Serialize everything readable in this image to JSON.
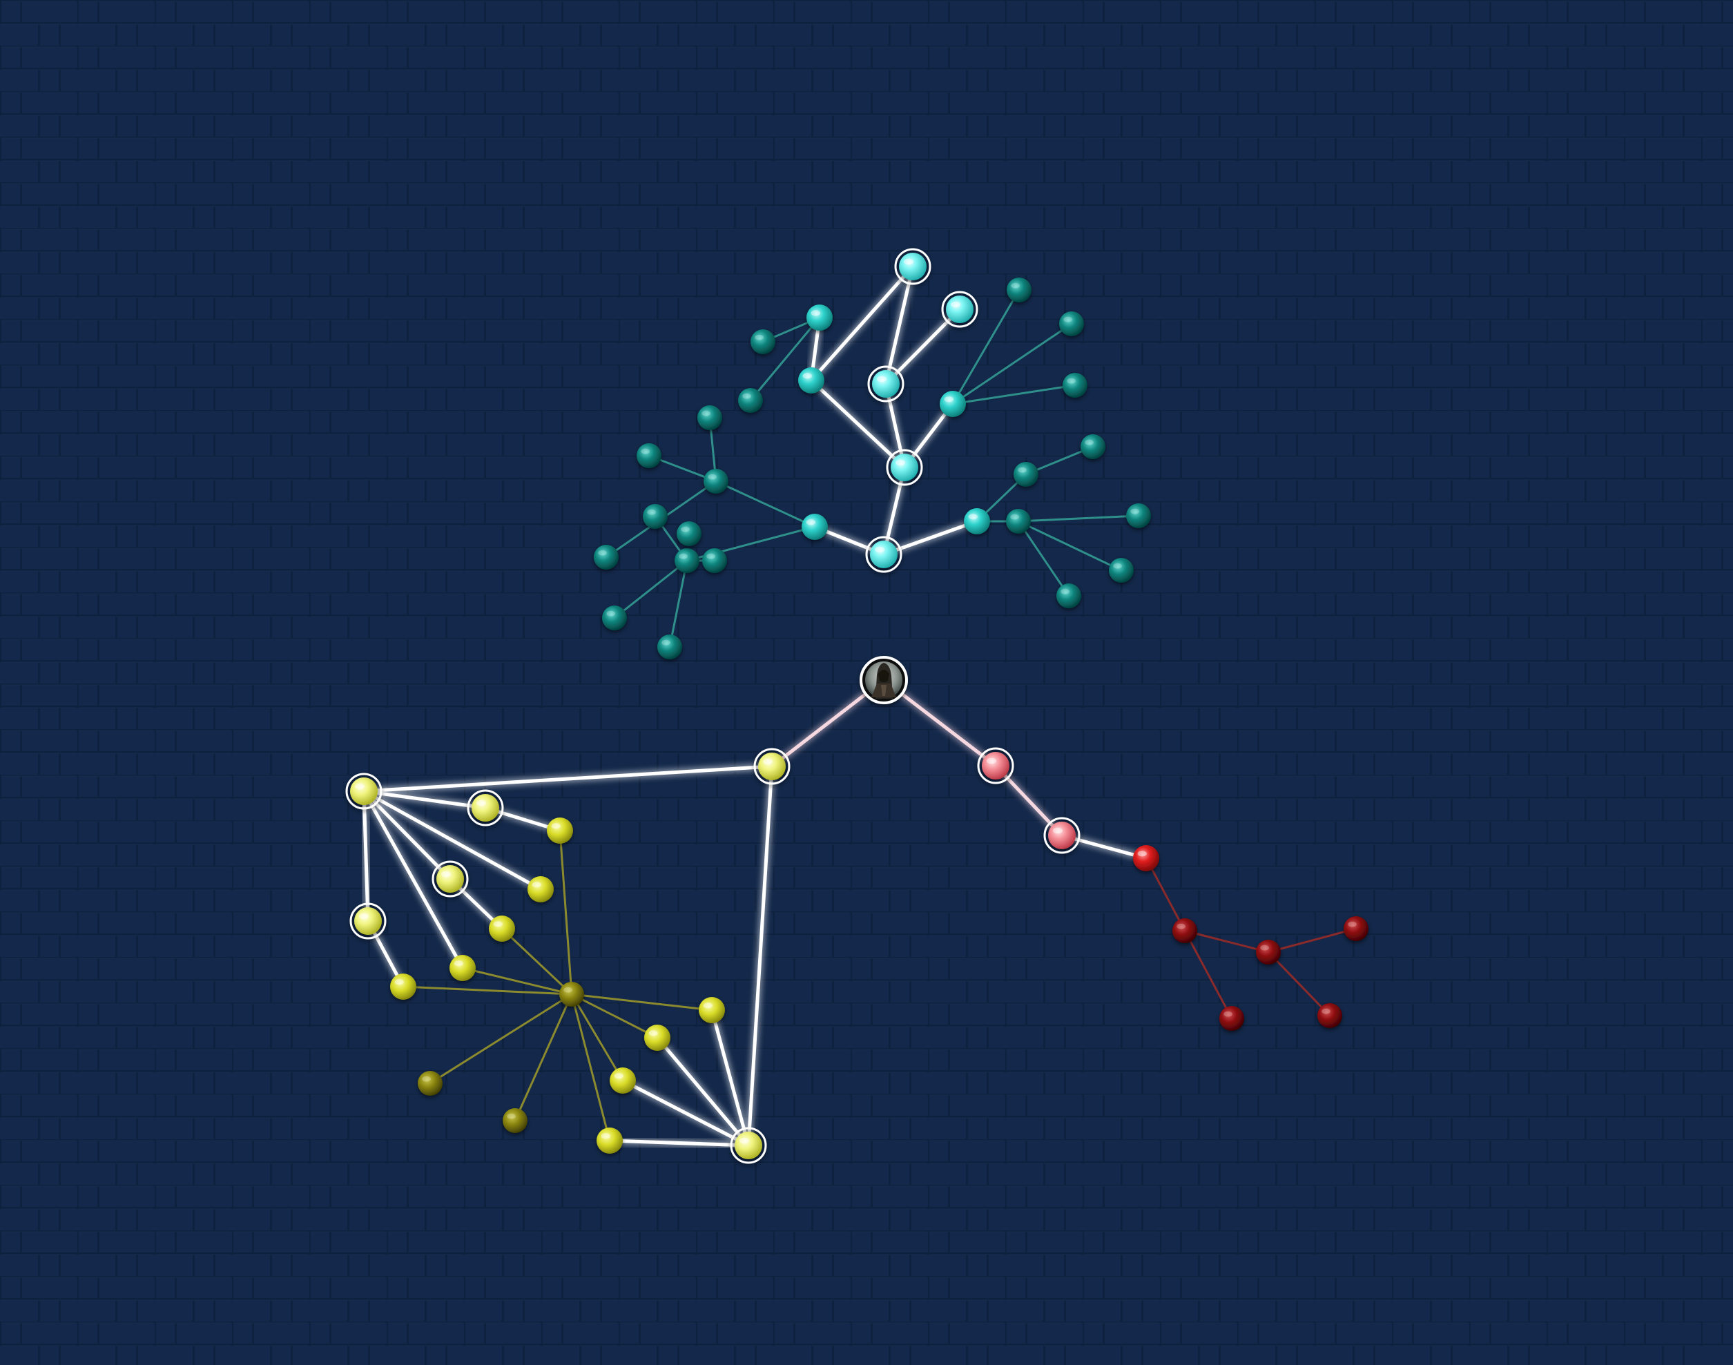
{
  "screen": {
    "type": "skill-tree",
    "background_color": "#13284a",
    "tile_line_color": "#0d1e3a"
  },
  "center": {
    "name": "character-portrait",
    "icon": "hooded-assassin-portrait-icon"
  },
  "colors": {
    "active_link": "#ffffff",
    "cyan_active": "#6ff2f2",
    "cyan_inactive": "#0f8a84",
    "cyan_link": "#2f8f8a",
    "yellow_active": "#f2f58a",
    "yellow_inactive": "#d8d82a",
    "yellow_dark": "#7f7a10",
    "yellow_link": "#8c8a2e",
    "red_active": "#f58a92",
    "red_inactive": "#c01818",
    "red_dark": "#8c0f12",
    "red_link": "#8a2a2a",
    "center_link_tint": "#f6d8e0"
  },
  "branches": [
    {
      "name": "cyan-branch",
      "nodes": [
        {
          "id": "c1",
          "state": "active"
        },
        {
          "id": "c2",
          "state": "active"
        },
        {
          "id": "c3",
          "state": "active"
        },
        {
          "id": "c4",
          "state": "active"
        },
        {
          "id": "c5",
          "state": "active"
        },
        {
          "id": "c6",
          "state": "available"
        },
        {
          "id": "c7",
          "state": "available"
        },
        {
          "id": "c8",
          "state": "available"
        },
        {
          "id": "c9",
          "state": "available"
        },
        {
          "id": "c10",
          "state": "available"
        },
        {
          "id": "c11",
          "state": "locked"
        },
        {
          "id": "c12",
          "state": "locked"
        },
        {
          "id": "c13",
          "state": "locked"
        },
        {
          "id": "c14",
          "state": "locked"
        },
        {
          "id": "c15",
          "state": "locked"
        },
        {
          "id": "c16",
          "state": "locked"
        },
        {
          "id": "c17",
          "state": "locked"
        },
        {
          "id": "c18",
          "state": "locked"
        },
        {
          "id": "c19",
          "state": "locked"
        },
        {
          "id": "c20",
          "state": "locked"
        },
        {
          "id": "c21",
          "state": "locked"
        },
        {
          "id": "c22",
          "state": "locked"
        },
        {
          "id": "c23",
          "state": "locked"
        },
        {
          "id": "c24",
          "state": "locked"
        },
        {
          "id": "c25",
          "state": "locked"
        },
        {
          "id": "c26",
          "state": "locked"
        },
        {
          "id": "c27",
          "state": "locked"
        },
        {
          "id": "c28",
          "state": "locked"
        },
        {
          "id": "c29",
          "state": "locked"
        },
        {
          "id": "c30",
          "state": "locked"
        },
        {
          "id": "c31",
          "state": "locked"
        }
      ]
    },
    {
      "name": "yellow-branch",
      "nodes": [
        {
          "id": "y1",
          "state": "active"
        },
        {
          "id": "y2",
          "state": "active"
        },
        {
          "id": "y3",
          "state": "active"
        },
        {
          "id": "y4",
          "state": "active"
        },
        {
          "id": "y5",
          "state": "active"
        },
        {
          "id": "y6",
          "state": "active"
        },
        {
          "id": "y7",
          "state": "available"
        },
        {
          "id": "y8",
          "state": "available"
        },
        {
          "id": "y9",
          "state": "available"
        },
        {
          "id": "y10",
          "state": "available"
        },
        {
          "id": "y11",
          "state": "available"
        },
        {
          "id": "y12",
          "state": "available"
        },
        {
          "id": "y13",
          "state": "available"
        },
        {
          "id": "y14",
          "state": "available"
        },
        {
          "id": "y15",
          "state": "available"
        },
        {
          "id": "y16",
          "state": "locked"
        },
        {
          "id": "y17",
          "state": "locked"
        },
        {
          "id": "y18",
          "state": "locked"
        }
      ]
    },
    {
      "name": "red-branch",
      "nodes": [
        {
          "id": "r1",
          "state": "active"
        },
        {
          "id": "r2",
          "state": "active"
        },
        {
          "id": "r3",
          "state": "available"
        },
        {
          "id": "r4",
          "state": "locked"
        },
        {
          "id": "r5",
          "state": "locked"
        },
        {
          "id": "r6",
          "state": "locked"
        },
        {
          "id": "r7",
          "state": "locked"
        },
        {
          "id": "r8",
          "state": "locked"
        }
      ]
    }
  ]
}
